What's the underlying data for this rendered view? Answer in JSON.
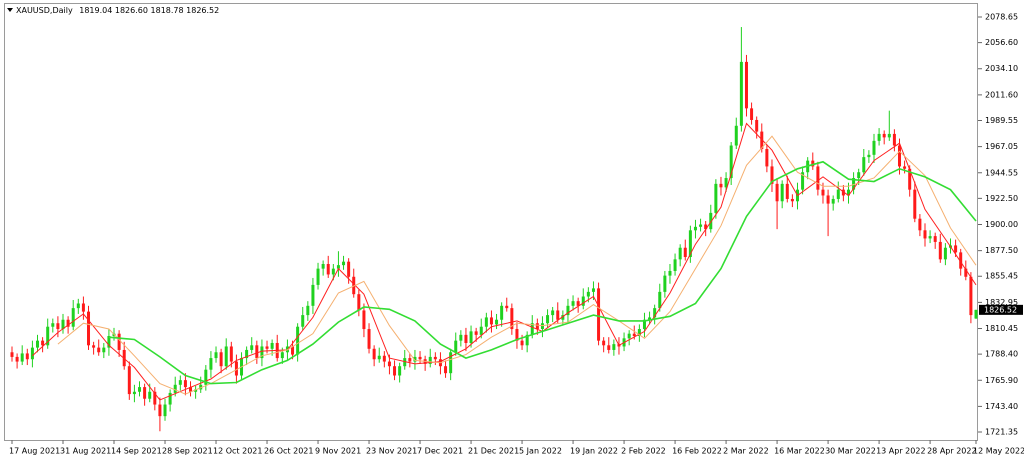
{
  "chart_data": {
    "type": "candlestick",
    "title": "XAUUSD,Daily",
    "ohlc_labels": [
      "1819.04",
      "1826.60",
      "1818.78",
      "1826.52"
    ],
    "up_color": "#1fd11f",
    "down_color": "#ff1a1a",
    "categories": [
      "17 Aug 2021",
      null,
      null,
      null,
      null,
      null,
      null,
      null,
      null,
      null,
      "31 Aug 2021",
      null,
      null,
      null,
      null,
      null,
      null,
      null,
      null,
      null,
      "14 Sep 2021",
      null,
      null,
      null,
      null,
      null,
      null,
      null,
      null,
      null,
      "28 Sep 2021",
      null,
      null,
      null,
      null,
      null,
      null,
      null,
      null,
      null,
      "12 Oct 2021",
      null,
      null,
      null,
      null,
      null,
      null,
      null,
      null,
      null,
      "26 Oct 2021",
      null,
      null,
      null,
      null,
      null,
      null,
      null,
      null,
      null,
      "9 Nov 2021",
      null,
      null,
      null,
      null,
      null,
      null,
      null,
      null,
      null,
      "23 Nov 2021",
      null,
      null,
      null,
      null,
      null,
      null,
      null,
      null,
      null,
      "7 Dec 2021",
      null,
      null,
      null,
      null,
      null,
      null,
      null,
      null,
      null,
      "21 Dec 2021",
      null,
      null,
      null,
      null,
      null,
      null,
      null,
      null,
      null,
      "5 Jan 2022",
      null,
      null,
      null,
      null,
      null,
      null,
      null,
      null,
      null,
      "19 Jan 2022",
      null,
      null,
      null,
      null,
      null,
      null,
      null,
      null,
      null,
      "2 Feb 2022",
      null,
      null,
      null,
      null,
      null,
      null,
      null,
      null,
      null,
      "16 Feb 2022",
      null,
      null,
      null,
      null,
      null,
      null,
      null,
      null,
      null,
      "2 Mar 2022",
      null,
      null,
      null,
      null,
      null,
      null,
      null,
      null,
      null,
      "16 Mar 2022",
      null,
      null,
      null,
      null,
      null,
      null,
      null,
      null,
      null,
      "30 Mar 2022",
      null,
      null,
      null,
      null,
      null,
      null,
      null,
      null,
      null,
      "13 Apr 2022",
      null,
      null,
      null,
      null,
      null,
      null,
      null,
      null,
      null,
      "28 Apr 2022",
      null,
      null,
      null,
      null,
      null,
      null,
      null,
      null,
      "12 May 2022"
    ],
    "open": [
      1790,
      1786,
      1782,
      1789,
      1784,
      1794,
      1800,
      1796,
      1812,
      1815,
      1810,
      1818,
      1812,
      1828,
      1832,
      1825,
      1796,
      1794,
      1790,
      1794,
      1804,
      1806,
      1792,
      1778,
      1754,
      1756,
      1760,
      1750,
      1756,
      1745,
      1735,
      1745,
      1755,
      1762,
      1766,
      1760,
      1756,
      1758,
      1762,
      1775,
      1785,
      1790,
      1778,
      1795,
      1782,
      1770,
      1785,
      1792,
      1796,
      1785,
      1795,
      1793,
      1798,
      1785,
      1790,
      1795,
      1788,
      1812,
      1822,
      1830,
      1848,
      1862,
      1866,
      1857,
      1862,
      1865,
      1868,
      1855,
      1840,
      1826,
      1810,
      1793,
      1784,
      1787,
      1782,
      1778,
      1770,
      1778,
      1785,
      1782,
      1786,
      1784,
      1780,
      1786,
      1784,
      1778,
      1772,
      1790,
      1800,
      1805,
      1798,
      1808,
      1805,
      1812,
      1820,
      1814,
      1818,
      1830,
      1828,
      1810,
      1800,
      1796,
      1805,
      1815,
      1810,
      1815,
      1822,
      1826,
      1818,
      1822,
      1830,
      1834,
      1830,
      1838,
      1842,
      1845,
      1800,
      1796,
      1792,
      1797,
      1795,
      1802,
      1806,
      1804,
      1810,
      1818,
      1820,
      1828,
      1842,
      1856,
      1860,
      1870,
      1880,
      1872,
      1895,
      1898,
      1900,
      1896,
      1910,
      1935,
      1932,
      1940,
      1968,
      1985,
      2040,
      2000,
      1990,
      1980,
      1965,
      1950,
      1935,
      1920,
      1935,
      1922,
      1920,
      1930,
      1945,
      1955,
      1950,
      1930,
      1925,
      1918,
      1922,
      1930,
      1925,
      1930,
      1940,
      1945,
      1958,
      1960,
      1972,
      1978,
      1975,
      1978,
      1968,
      1950,
      1948,
      1930,
      1905,
      1895,
      1888,
      1890,
      1885,
      1870,
      1880,
      1882,
      1876,
      1862,
      1855,
      1819.04
    ],
    "high": [
      1795,
      1789,
      1796,
      1793,
      1800,
      1805,
      1803,
      1819,
      1819,
      1821,
      1823,
      1821,
      1835,
      1836,
      1838,
      1830,
      1799,
      1801,
      1798,
      1810,
      1811,
      1809,
      1799,
      1782,
      1762,
      1765,
      1763,
      1763,
      1760,
      1751,
      1750,
      1758,
      1769,
      1770,
      1772,
      1765,
      1761,
      1769,
      1779,
      1791,
      1795,
      1793,
      1802,
      1799,
      1788,
      1790,
      1795,
      1803,
      1800,
      1801,
      1800,
      1801,
      1805,
      1794,
      1801,
      1800,
      1815,
      1829,
      1834,
      1854,
      1867,
      1869,
      1873,
      1866,
      1877,
      1873,
      1871,
      1862,
      1844,
      1832,
      1815,
      1796,
      1794,
      1791,
      1788,
      1783,
      1781,
      1792,
      1789,
      1792,
      1791,
      1787,
      1793,
      1790,
      1790,
      1783,
      1793,
      1807,
      1809,
      1811,
      1813,
      1811,
      1819,
      1824,
      1826,
      1823,
      1833,
      1837,
      1832,
      1816,
      1805,
      1808,
      1822,
      1819,
      1821,
      1827,
      1829,
      1833,
      1826,
      1836,
      1839,
      1837,
      1845,
      1846,
      1851,
      1850,
      1803,
      1803,
      1801,
      1803,
      1807,
      1809,
      1813,
      1814,
      1824,
      1825,
      1831,
      1849,
      1860,
      1866,
      1875,
      1883,
      1887,
      1899,
      1904,
      1905,
      1903,
      1917,
      1939,
      1941,
      1945,
      1971,
      1992,
      2070,
      2046,
      2005,
      1993,
      1987,
      1969,
      1956,
      1940,
      1938,
      1942,
      1926,
      1936,
      1950,
      1958,
      1962,
      1954,
      1936,
      1930,
      1925,
      1937,
      1934,
      1936,
      1945,
      1948,
      1965,
      1964,
      1978,
      1983,
      1981,
      1998,
      1982,
      1974,
      1955,
      1951,
      1937,
      1909,
      1901,
      1895,
      1893,
      1892,
      1884,
      1888,
      1887,
      1879,
      1869,
      1859,
      1826.6
    ],
    "low": [
      1782,
      1776,
      1779,
      1779,
      1777,
      1790,
      1790,
      1793,
      1807,
      1803,
      1806,
      1806,
      1809,
      1823,
      1818,
      1792,
      1788,
      1787,
      1785,
      1787,
      1800,
      1786,
      1775,
      1749,
      1747,
      1752,
      1744,
      1747,
      1740,
      1722,
      1731,
      1739,
      1752,
      1757,
      1753,
      1752,
      1750,
      1755,
      1757,
      1768,
      1781,
      1772,
      1775,
      1777,
      1763,
      1766,
      1779,
      1789,
      1780,
      1778,
      1789,
      1787,
      1782,
      1780,
      1783,
      1784,
      1782,
      1809,
      1817,
      1823,
      1844,
      1856,
      1854,
      1852,
      1855,
      1861,
      1849,
      1837,
      1821,
      1803,
      1789,
      1778,
      1781,
      1777,
      1771,
      1766,
      1764,
      1775,
      1777,
      1775,
      1780,
      1774,
      1777,
      1779,
      1771,
      1768,
      1766,
      1787,
      1795,
      1791,
      1794,
      1799,
      1802,
      1807,
      1807,
      1810,
      1812,
      1825,
      1805,
      1793,
      1792,
      1790,
      1802,
      1805,
      1803,
      1811,
      1816,
      1815,
      1813,
      1815,
      1826,
      1824,
      1827,
      1833,
      1835,
      1796,
      1790,
      1789,
      1787,
      1788,
      1791,
      1796,
      1801,
      1799,
      1803,
      1814,
      1814,
      1825,
      1837,
      1849,
      1856,
      1864,
      1869,
      1867,
      1888,
      1894,
      1890,
      1893,
      1905,
      1925,
      1928,
      1934,
      1965,
      1980,
      1993,
      1986,
      1974,
      1962,
      1945,
      1928,
      1896,
      1914,
      1919,
      1915,
      1913,
      1926,
      1939,
      1947,
      1925,
      1918,
      1890,
      1912,
      1919,
      1920,
      1918,
      1926,
      1934,
      1942,
      1953,
      1953,
      1968,
      1969,
      1972,
      1963,
      1943,
      1944,
      1924,
      1902,
      1890,
      1881,
      1884,
      1879,
      1867,
      1865,
      1875,
      1872,
      1856,
      1852,
      1815,
      1818.78
    ],
    "close": [
      1786,
      1782,
      1789,
      1784,
      1794,
      1800,
      1796,
      1812,
      1815,
      1810,
      1818,
      1812,
      1828,
      1832,
      1825,
      1796,
      1794,
      1790,
      1794,
      1804,
      1806,
      1792,
      1778,
      1754,
      1756,
      1760,
      1750,
      1756,
      1745,
      1735,
      1745,
      1755,
      1762,
      1766,
      1760,
      1756,
      1758,
      1762,
      1775,
      1785,
      1790,
      1778,
      1795,
      1782,
      1770,
      1785,
      1792,
      1796,
      1785,
      1795,
      1793,
      1798,
      1785,
      1790,
      1795,
      1788,
      1812,
      1822,
      1830,
      1848,
      1862,
      1866,
      1857,
      1862,
      1865,
      1868,
      1855,
      1840,
      1826,
      1810,
      1793,
      1784,
      1787,
      1782,
      1778,
      1770,
      1778,
      1785,
      1782,
      1786,
      1784,
      1780,
      1786,
      1784,
      1778,
      1772,
      1790,
      1800,
      1805,
      1798,
      1808,
      1805,
      1812,
      1820,
      1814,
      1818,
      1830,
      1828,
      1810,
      1800,
      1796,
      1805,
      1815,
      1810,
      1815,
      1822,
      1826,
      1818,
      1822,
      1830,
      1834,
      1830,
      1838,
      1842,
      1845,
      1800,
      1796,
      1792,
      1797,
      1795,
      1802,
      1806,
      1804,
      1810,
      1818,
      1820,
      1828,
      1842,
      1856,
      1860,
      1870,
      1880,
      1872,
      1895,
      1898,
      1900,
      1896,
      1910,
      1935,
      1932,
      1940,
      1968,
      1985,
      2040,
      2000,
      1990,
      1980,
      1965,
      1950,
      1935,
      1920,
      1935,
      1922,
      1920,
      1930,
      1945,
      1955,
      1950,
      1930,
      1925,
      1918,
      1922,
      1930,
      1925,
      1930,
      1940,
      1945,
      1958,
      1960,
      1972,
      1978,
      1975,
      1978,
      1968,
      1950,
      1948,
      1930,
      1905,
      1895,
      1888,
      1890,
      1885,
      1870,
      1880,
      1882,
      1876,
      1862,
      1855,
      1822,
      1826.52
    ],
    "lines": [
      {
        "color": "#ff2020",
        "x": [
          4,
          9,
          14,
          19,
          24,
          29,
          34,
          39,
          44,
          49,
          54,
          59,
          64,
          69,
          74,
          79,
          84,
          89,
          94,
          99,
          104,
          109,
          114,
          119,
          124,
          129,
          134,
          139,
          144,
          149,
          154,
          159,
          164,
          169,
          174,
          179,
          184,
          189
        ],
        "values": [
          1787,
          1807,
          1823,
          1796,
          1777,
          1749,
          1758,
          1767,
          1783,
          1791,
          1792,
          1820,
          1862,
          1840,
          1785,
          1780,
          1782,
          1793,
          1812,
          1817,
          1808,
          1824,
          1838,
          1796,
          1808,
          1841,
          1883,
          1915,
          1987,
          1964,
          1925,
          1941,
          1925,
          1955,
          1970,
          1913,
          1881,
          1848
        ]
      },
      {
        "color": "#f5b070",
        "x": [
          9,
          14,
          19,
          24,
          29,
          34,
          39,
          44,
          49,
          54,
          59,
          64,
          69,
          74,
          79,
          84,
          89,
          94,
          99,
          104,
          109,
          114,
          119,
          124,
          129,
          134,
          139,
          144,
          149,
          154,
          159,
          164,
          169,
          174,
          179,
          184,
          189
        ],
        "values": [
          1797,
          1815,
          1810,
          1787,
          1763,
          1754,
          1763,
          1775,
          1787,
          1792,
          1806,
          1841,
          1851,
          1813,
          1783,
          1781,
          1788,
          1803,
          1815,
          1813,
          1816,
          1831,
          1817,
          1802,
          1825,
          1862,
          1899,
          1951,
          1976,
          1945,
          1933,
          1933,
          1940,
          1963,
          1942,
          1897,
          1865
        ]
      },
      {
        "color": "#33dd33",
        "x": [
          19,
          24,
          29,
          34,
          39,
          44,
          49,
          54,
          59,
          64,
          69,
          74,
          79,
          84,
          89,
          94,
          99,
          104,
          109,
          114,
          119,
          124,
          129,
          134,
          139,
          144,
          149,
          154,
          159,
          164,
          169,
          174,
          179,
          184,
          189
        ],
        "values": [
          1803,
          1801,
          1786,
          1770,
          1763,
          1764,
          1775,
          1783,
          1797,
          1816,
          1829,
          1827,
          1817,
          1797,
          1785,
          1792,
          1801,
          1808,
          1815,
          1822,
          1817,
          1817,
          1821,
          1832,
          1862,
          1907,
          1937,
          1948,
          1954,
          1939,
          1937,
          1948,
          1941,
          1930,
          1903
        ]
      }
    ],
    "ylim": [
      1714.47,
      2089.84
    ],
    "yticks": [
      {
        "value": 2078.65,
        "label": "2078.65"
      },
      {
        "value": 2056.6,
        "label": "2056.60"
      },
      {
        "value": 2034.1,
        "label": "2034.10"
      },
      {
        "value": 2011.6,
        "label": "2011.60"
      },
      {
        "value": 1989.55,
        "label": "1989.55"
      },
      {
        "value": 1967.05,
        "label": "1967.05"
      },
      {
        "value": 1944.55,
        "label": "1944.55"
      },
      {
        "value": 1922.5,
        "label": "1922.50"
      },
      {
        "value": 1900,
        "label": "1900.00"
      },
      {
        "value": 1877.5,
        "label": "1877.50"
      },
      {
        "value": 1855.45,
        "label": "1855.45"
      },
      {
        "value": 1832.95,
        "label": "1832.95"
      },
      {
        "value": 1810.45,
        "label": "1810.45"
      },
      {
        "value": 1788.4,
        "label": "1788.40"
      },
      {
        "value": 1765.9,
        "label": "1765.90"
      },
      {
        "value": 1743.4,
        "label": "1743.40"
      },
      {
        "value": 1721.35,
        "label": "1721.35"
      }
    ]
  }
}
